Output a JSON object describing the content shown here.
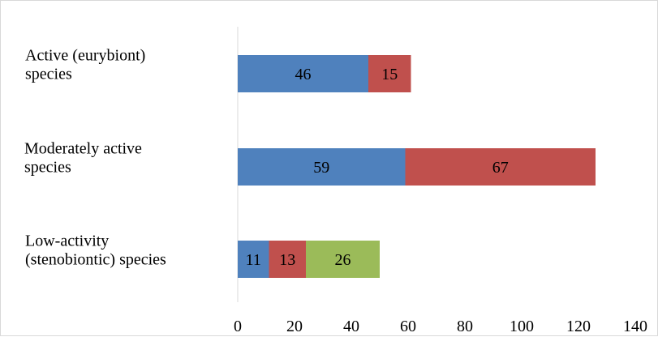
{
  "chart_data": {
    "type": "bar",
    "orientation": "horizontal",
    "stacked": true,
    "title": "",
    "xlabel": "",
    "ylabel": "",
    "xlim": [
      0,
      140
    ],
    "x_ticks": [
      "0",
      "20",
      "40",
      "60",
      "80",
      "100",
      "120",
      "140"
    ],
    "grid": false,
    "legend": "none",
    "categories": [
      [
        "Active (eurybiont)",
        "species"
      ],
      [
        "Moderately active",
        "species"
      ],
      [
        "Low-activity",
        "(stenobiontic) species"
      ]
    ],
    "series": [
      {
        "color": "#4f81bd",
        "values": [
          46,
          59,
          11
        ]
      },
      {
        "color": "#c0504d",
        "values": [
          15,
          67,
          13
        ]
      },
      {
        "color": "#9bbb59",
        "values": [
          null,
          null,
          26
        ]
      }
    ]
  }
}
